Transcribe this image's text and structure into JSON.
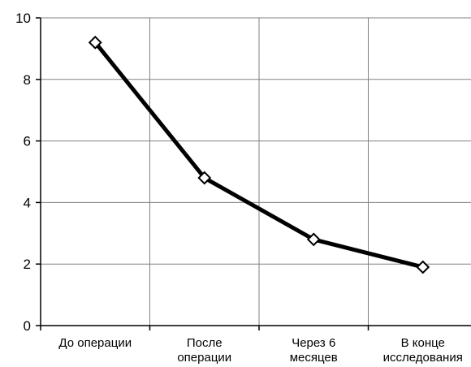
{
  "chart_data": {
    "type": "line",
    "categories": [
      "До операции",
      "После операции",
      "Через 6 месяцев",
      "В конце исследования"
    ],
    "category_label_lines": [
      [
        "До операции"
      ],
      [
        "После",
        "операции"
      ],
      [
        "Через 6",
        "месяцев"
      ],
      [
        "В конце",
        "исследования"
      ]
    ],
    "series": [
      {
        "values": [
          9.2,
          4.8,
          2.8,
          1.9
        ]
      }
    ],
    "y_ticks": [
      "0",
      "2",
      "4",
      "6",
      "8",
      "10"
    ],
    "ylim": [
      0,
      10
    ],
    "grid": true,
    "legend": "none",
    "colors": {
      "line": "#000000",
      "grid": "#808080",
      "marker_fill": "#ffffff"
    }
  }
}
